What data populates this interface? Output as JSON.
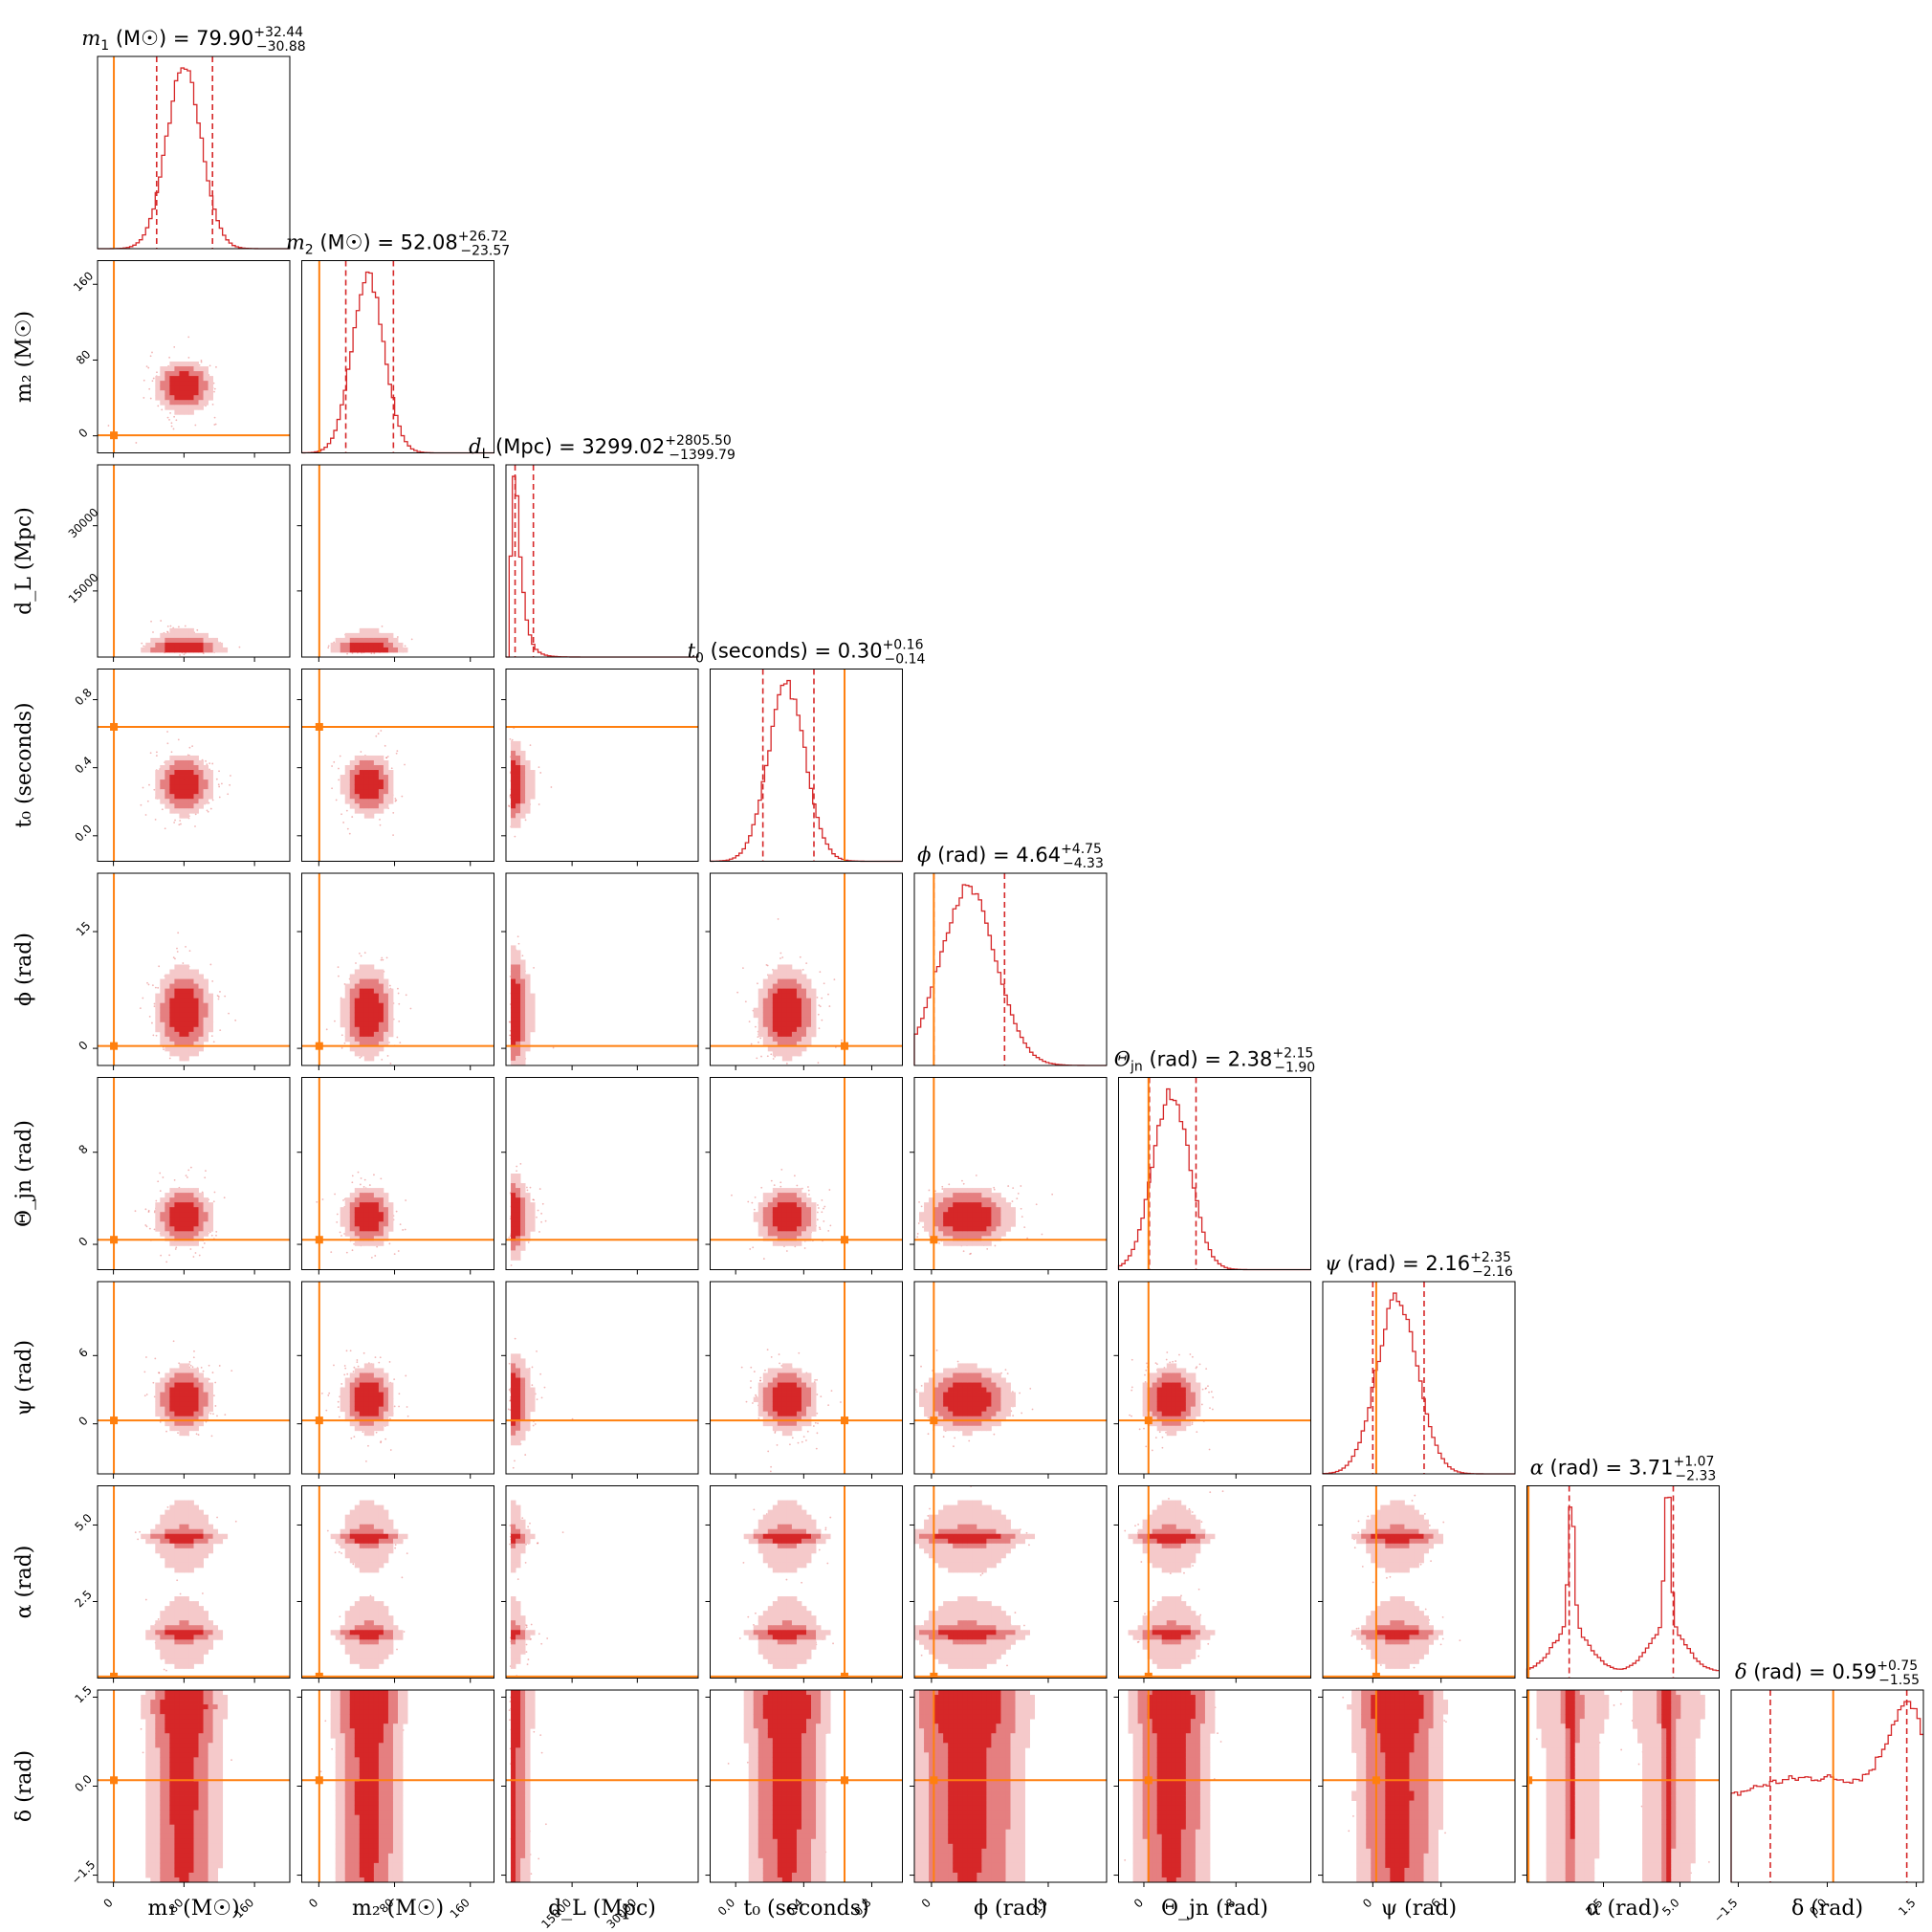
{
  "chart_data": {
    "type": "corner",
    "colors": {
      "posterior": "#d62728",
      "contour_inner": "#d62728",
      "contour_mid": "#e57f80",
      "contour_outer": "#f5c9ca",
      "truth": "#ff7f0e",
      "frame": "#000000"
    },
    "parameters": [
      {
        "key": "m1",
        "sym": "m",
        "sub": "1",
        "unit": "(M☉)",
        "range": [
          -18,
          200
        ],
        "ticks": [
          0,
          80,
          160
        ],
        "truth": 0.5,
        "median": 79.9,
        "plus": 32.44,
        "minus": 30.88,
        "shape": "normal",
        "spread": 20,
        "title_value": "79.90",
        "title_plus": "+32.44",
        "title_minus": "−30.88"
      },
      {
        "key": "m2",
        "sym": "m",
        "sub": "2",
        "unit": "(M☉)",
        "range": [
          -18,
          185
        ],
        "ticks": [
          0,
          80,
          160
        ],
        "truth": 0.5,
        "median": 52.08,
        "plus": 26.72,
        "minus": 23.57,
        "shape": "normal",
        "spread": 17,
        "title_value": "52.08",
        "title_plus": "+26.72",
        "title_minus": "−23.57"
      },
      {
        "key": "dL",
        "sym": "d",
        "sub": "L",
        "unit": "(Mpc)",
        "range": [
          -200,
          44000
        ],
        "ticks": [
          15000,
          30000
        ],
        "truth": null,
        "median": 3299.02,
        "plus": 2805.5,
        "minus": 1399.79,
        "shape": "skew",
        "spread": 2200,
        "title_value": "3299.02",
        "title_plus": "+2805.50",
        "title_minus": "−1399.79"
      },
      {
        "key": "t0",
        "sym": "t",
        "sub": "0",
        "unit": "(seconds)",
        "range": [
          -0.15,
          0.98
        ],
        "ticks": [
          0.0,
          0.4,
          0.8
        ],
        "truth": 0.64,
        "median": 0.3,
        "plus": 0.16,
        "minus": 0.14,
        "shape": "normal",
        "spread": 0.11,
        "title_value": "0.30",
        "title_plus": "+0.16",
        "title_minus": "−0.14"
      },
      {
        "key": "phi",
        "sym": "ϕ",
        "sub": "",
        "unit": "(rad)",
        "range": [
          -2.2,
          22.5
        ],
        "ticks": [
          0,
          15
        ],
        "truth": 0.3,
        "median": 4.64,
        "plus": 4.75,
        "minus": 4.33,
        "shape": "normal",
        "spread": 3.6,
        "title_value": "4.64",
        "title_plus": "+4.75",
        "title_minus": "−4.33"
      },
      {
        "key": "theta",
        "sym": "Θ",
        "sub": "jn",
        "unit": "(rad)",
        "range": [
          -2.2,
          14.5
        ],
        "ticks": [
          0,
          8
        ],
        "truth": 0.4,
        "median": 2.38,
        "plus": 2.15,
        "minus": 1.9,
        "shape": "normal",
        "spread": 1.6,
        "title_value": "2.38",
        "title_plus": "+2.15",
        "title_minus": "−1.90"
      },
      {
        "key": "psi",
        "sym": "ψ",
        "sub": "",
        "unit": "(rad)",
        "range": [
          -4.4,
          12.5
        ],
        "ticks": [
          0,
          6
        ],
        "truth": 0.3,
        "median": 2.16,
        "plus": 2.35,
        "minus": 2.16,
        "shape": "normal",
        "spread": 1.8,
        "title_value": "2.16",
        "title_plus": "+2.35",
        "title_minus": "−2.16"
      },
      {
        "key": "alpha",
        "sym": "α",
        "sub": "",
        "unit": "(rad)",
        "range": [
          0.0,
          6.28
        ],
        "ticks": [
          2.5,
          5.0
        ],
        "truth": 0.05,
        "median": 3.71,
        "plus": 1.07,
        "minus": 2.33,
        "shape": "bimodal",
        "spread": 0.35,
        "title_value": "3.71",
        "title_plus": "+1.07",
        "title_minus": "−2.33"
      },
      {
        "key": "delta",
        "sym": "δ",
        "sub": "",
        "unit": "(rad)",
        "range": [
          -1.62,
          1.62
        ],
        "ticks": [
          -1.5,
          0.0,
          1.5
        ],
        "truth": 0.1,
        "median": 0.59,
        "plus": 0.75,
        "minus": 1.55,
        "shape": "sky",
        "spread": 0.6,
        "title_value": "0.59",
        "title_plus": "+0.75",
        "title_minus": "−1.55"
      }
    ],
    "tick_labels": {
      "m1": [
        "0",
        "80",
        "160"
      ],
      "m2": [
        "0",
        "80",
        "160"
      ],
      "dL": [
        "15000",
        "30000"
      ],
      "t0": [
        "0.0",
        "0.4",
        "0.8"
      ],
      "phi": [
        "0",
        "15"
      ],
      "theta": [
        "0",
        "8"
      ],
      "psi": [
        "0",
        "6"
      ],
      "alpha": [
        "2.5",
        "5.0"
      ],
      "delta": [
        "−1.5",
        "0.0",
        "1.5"
      ]
    },
    "axis_labels": {
      "m1": "m₁ (M☉)",
      "m2": "m₂ (M☉)",
      "dL": "d_L (Mpc)",
      "t0": "t₀ (seconds)",
      "phi": "ϕ (rad)",
      "theta": "Θ_jn (rad)",
      "psi": "ψ (rad)",
      "alpha": "α (rad)",
      "delta": "δ (rad)"
    }
  }
}
